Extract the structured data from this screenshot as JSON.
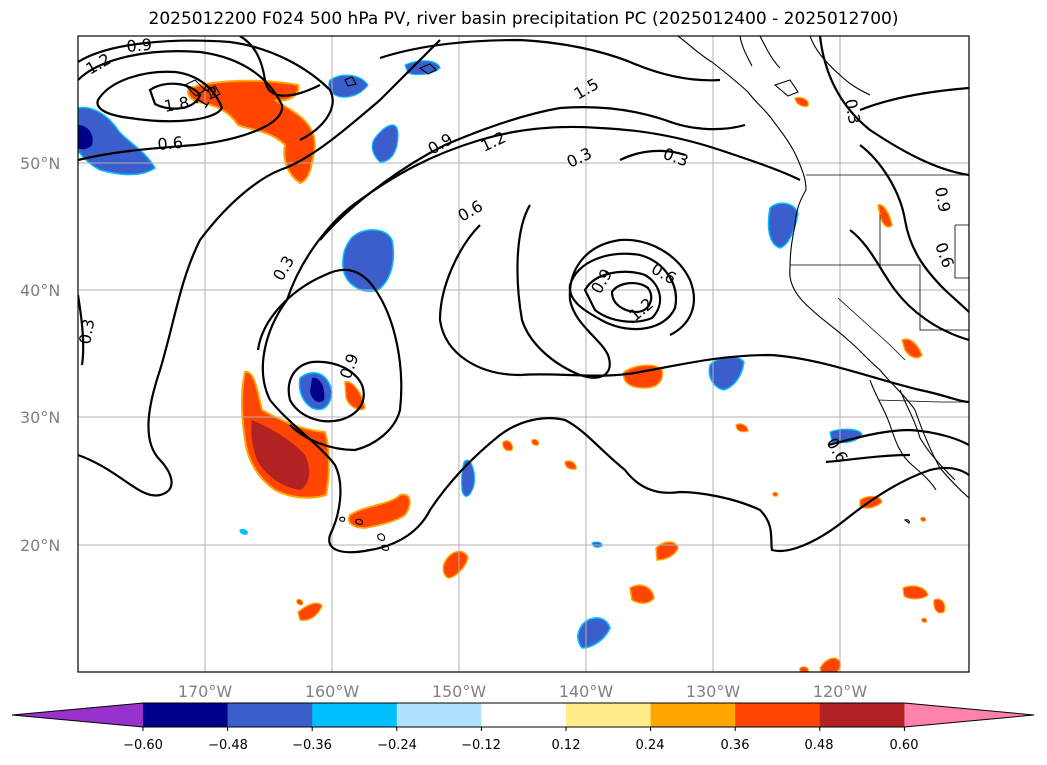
{
  "title": "2025012200 F024 500 hPa PV, river basin precipitation PC (2025012400 - 2025012700)",
  "axes": {
    "lat_labels": [
      "20°N",
      "30°N",
      "40°N",
      "50°N"
    ],
    "lon_labels": [
      "170°W",
      "160°W",
      "150°W",
      "140°W",
      "130°W",
      "120°W"
    ]
  },
  "colorbar": {
    "ticks": [
      "−0.60",
      "−0.48",
      "−0.36",
      "−0.24",
      "−0.12",
      "0.12",
      "0.24",
      "0.36",
      "0.48",
      "0.60"
    ],
    "colors": [
      "#9932cc",
      "#00008b",
      "#3a5fcd",
      "#00bfff",
      "#b0e2ff",
      "#ffffff",
      "#ffec8b",
      "#ffa500",
      "#ff4500",
      "#b22222",
      "#ff82ab"
    ]
  },
  "contour_labels": [
    "0.9",
    "1.2",
    "1.5",
    "1.8",
    "0.6",
    "0.9",
    "1.2",
    "1.5",
    "0.3",
    "0.3",
    "0.6",
    "0.3",
    "0.9",
    "0.6",
    "1.2",
    "0.3",
    "0.9",
    "0.3",
    "0.9",
    "0.6",
    "0.6",
    "0.6"
  ]
}
